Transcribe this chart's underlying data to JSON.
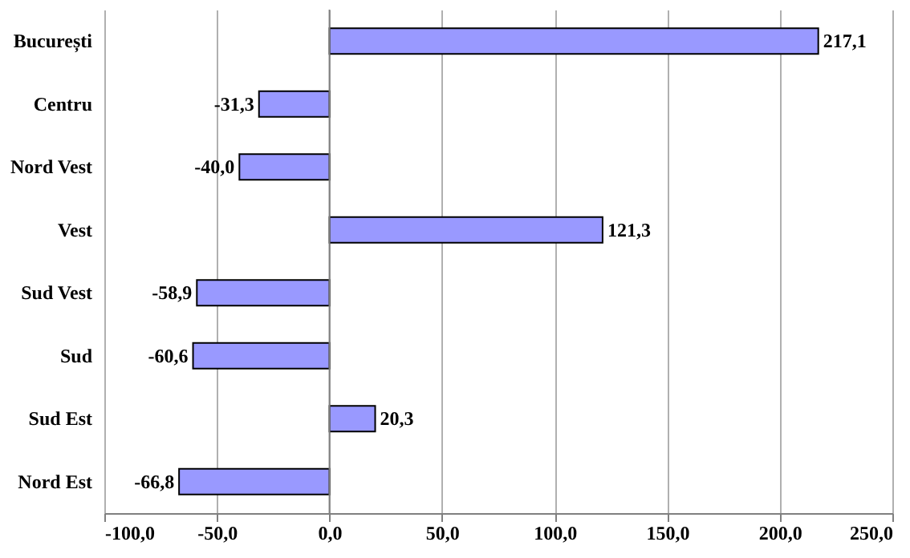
{
  "chart_data": {
    "type": "bar",
    "orientation": "horizontal",
    "categories": [
      "București",
      "Centru",
      "Nord Vest",
      "Vest",
      "Sud Vest",
      "Sud",
      "Sud Est",
      "Nord Est"
    ],
    "values": [
      217.1,
      -31.3,
      -40.0,
      121.3,
      -58.9,
      -60.6,
      20.3,
      -66.8
    ],
    "value_labels": [
      "217,1",
      "-31,3",
      "-40,0",
      "121,3",
      "-58,9",
      "-60,6",
      "20,3",
      "-66,8"
    ],
    "color": "#9999ff",
    "xlim": [
      -100,
      250
    ],
    "xticks": [
      {
        "value": -100,
        "label": "-100,0"
      },
      {
        "value": -50,
        "label": "-50,0"
      },
      {
        "value": 0,
        "label": "0,0"
      },
      {
        "value": 50,
        "label": "50,0"
      },
      {
        "value": 100,
        "label": "100,0"
      },
      {
        "value": 150,
        "label": "150,0"
      },
      {
        "value": 200,
        "label": "200,0"
      },
      {
        "value": 250,
        "label": "250,0"
      }
    ],
    "grid": "x"
  }
}
